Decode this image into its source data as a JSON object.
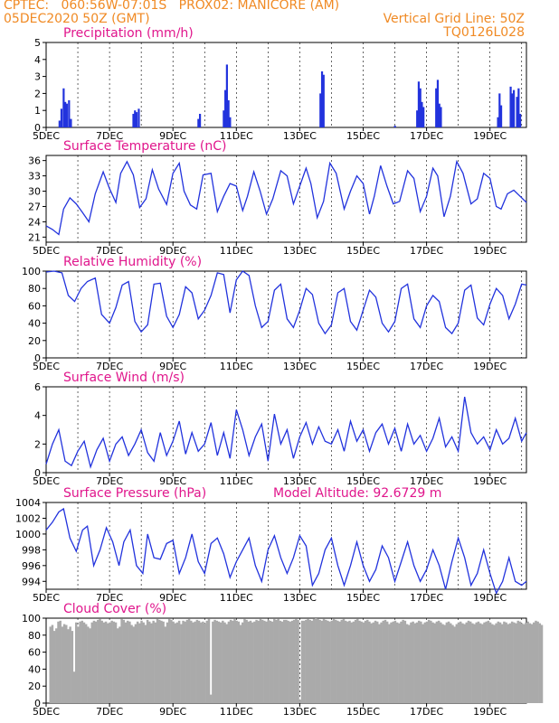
{
  "header": {
    "left_line1": "CPTEC:   060:56W-07:01S   PROX02: MANICORE (AM)",
    "left_line2": "05DEC2020 50Z (GMT)",
    "right_line2": "Vertical Grid Line: 50Z",
    "right_line3": "TQ0126L028"
  },
  "colors": {
    "header": "#f08a24",
    "title": "#e0168c",
    "line": "#2233dd",
    "bar": "#2233dd",
    "cloud": "#aaaaaa",
    "grid": "#000000"
  },
  "x_tick_labels": [
    "5DEC",
    "7DEC",
    "9DEC",
    "11DEC",
    "13DEC",
    "15DEC",
    "17DEC",
    "19DEC"
  ],
  "chart_data": [
    {
      "type": "bar",
      "title": "Precipitation (mm/h)",
      "ylim": [
        0,
        5
      ],
      "yticks": [
        0,
        1,
        2,
        3,
        4,
        5
      ],
      "x_unit": "days since 05DEC",
      "x": [
        0.42,
        0.48,
        0.55,
        0.6,
        0.65,
        0.72,
        0.78,
        2.75,
        2.8,
        2.85,
        2.92,
        4.8,
        4.85,
        5.6,
        5.65,
        5.7,
        5.75,
        5.8,
        8.65,
        8.7,
        8.75,
        11.0,
        11.7,
        11.75,
        11.8,
        11.85,
        11.9,
        12.3,
        12.35,
        12.4,
        12.45,
        14.25,
        14.3,
        14.35,
        14.65,
        14.7,
        14.75,
        14.85,
        14.9,
        14.95
      ],
      "values": [
        0.4,
        1.1,
        2.3,
        1.5,
        1.4,
        1.6,
        0.5,
        0.8,
        1.0,
        0.9,
        1.1,
        0.5,
        0.8,
        1.0,
        2.2,
        3.7,
        1.6,
        0.6,
        2.0,
        3.3,
        3.1,
        0.1,
        1.0,
        2.7,
        2.3,
        1.5,
        1.2,
        2.3,
        2.8,
        1.4,
        1.2,
        0.6,
        2.0,
        1.3,
        2.4,
        2.0,
        2.2,
        1.8,
        2.3,
        0.8
      ]
    },
    {
      "type": "line",
      "title": "Surface Temperature (nC)",
      "ylim": [
        20,
        37
      ],
      "yticks": [
        21,
        24,
        27,
        30,
        33,
        36
      ],
      "x_unit": "days since 05DEC",
      "x": [
        0,
        0.2,
        0.4,
        0.55,
        0.75,
        0.95,
        1.15,
        1.35,
        1.55,
        1.8,
        2.0,
        2.2,
        2.35,
        2.55,
        2.75,
        2.95,
        3.15,
        3.35,
        3.55,
        3.8,
        4.0,
        4.2,
        4.35,
        4.55,
        4.75,
        4.95,
        5.2,
        5.4,
        5.6,
        5.8,
        6.0,
        6.2,
        6.35,
        6.55,
        6.75,
        6.95,
        7.15,
        7.4,
        7.6,
        7.8,
        8.0,
        8.2,
        8.35,
        8.55,
        8.75,
        8.95,
        9.15,
        9.4,
        9.6,
        9.8,
        10.0,
        10.2,
        10.35,
        10.55,
        10.75,
        10.95,
        11.15,
        11.4,
        11.6,
        11.8,
        12.0,
        12.2,
        12.35,
        12.55,
        12.75,
        12.95,
        13.15,
        13.4,
        13.6,
        13.8,
        14.0,
        14.2,
        14.35,
        14.55,
        14.75,
        14.95,
        15.15
      ],
      "values": [
        23.2,
        22.5,
        21.5,
        26.5,
        28.7,
        27.5,
        25.8,
        24.0,
        29.5,
        33.8,
        30.5,
        27.8,
        33.5,
        35.8,
        33.2,
        26.8,
        28.5,
        34.2,
        30.4,
        27.4,
        33.5,
        35.5,
        30.0,
        27.3,
        26.5,
        33.2,
        33.5,
        26.0,
        29.0,
        31.5,
        31.0,
        26.2,
        29.0,
        33.8,
        30.0,
        25.5,
        28.5,
        34.0,
        33.0,
        27.5,
        31.0,
        34.5,
        31.5,
        24.8,
        28.0,
        35.5,
        33.5,
        26.5,
        30.0,
        33.0,
        31.5,
        25.5,
        29.0,
        35.0,
        31.0,
        27.5,
        28.0,
        34.0,
        32.5,
        26.0,
        29.0,
        34.5,
        33.0,
        25.0,
        29.0,
        35.8,
        33.5,
        27.5,
        28.5,
        33.5,
        32.5,
        27.0,
        26.5,
        29.5,
        30.2,
        29.0,
        27.8
      ]
    },
    {
      "type": "line",
      "title": "Relative Humidity (%)",
      "ylim": [
        0,
        100
      ],
      "yticks": [
        0,
        20,
        40,
        60,
        80,
        100
      ],
      "x_unit": "days since 05DEC",
      "x": [
        0,
        0.25,
        0.5,
        0.7,
        0.9,
        1.1,
        1.3,
        1.55,
        1.75,
        2.0,
        2.2,
        2.4,
        2.6,
        2.8,
        3.0,
        3.2,
        3.4,
        3.6,
        3.8,
        4.0,
        4.2,
        4.4,
        4.6,
        4.8,
        5.0,
        5.2,
        5.4,
        5.6,
        5.8,
        6.0,
        6.2,
        6.4,
        6.6,
        6.8,
        7.0,
        7.2,
        7.4,
        7.6,
        7.8,
        8.0,
        8.2,
        8.4,
        8.6,
        8.8,
        9.0,
        9.2,
        9.4,
        9.6,
        9.8,
        10.0,
        10.2,
        10.4,
        10.6,
        10.8,
        11.0,
        11.2,
        11.4,
        11.6,
        11.8,
        12.0,
        12.2,
        12.4,
        12.6,
        12.8,
        13.0,
        13.2,
        13.4,
        13.6,
        13.8,
        14.0,
        14.2,
        14.4,
        14.6,
        14.8,
        15.0,
        15.15
      ],
      "values": [
        99,
        100,
        98,
        72,
        65,
        80,
        88,
        92,
        50,
        40,
        58,
        84,
        88,
        42,
        30,
        38,
        85,
        86,
        48,
        35,
        50,
        82,
        75,
        45,
        55,
        72,
        98,
        96,
        52,
        90,
        100,
        95,
        60,
        35,
        42,
        78,
        85,
        45,
        35,
        55,
        80,
        73,
        40,
        28,
        38,
        75,
        80,
        42,
        32,
        55,
        78,
        70,
        40,
        30,
        42,
        80,
        85,
        45,
        35,
        60,
        72,
        65,
        35,
        28,
        40,
        78,
        84,
        46,
        38,
        62,
        80,
        72,
        45,
        62,
        85,
        84
      ]
    },
    {
      "type": "line",
      "title": "Surface Wind (m/s)",
      "ylim": [
        0,
        6
      ],
      "yticks": [
        0,
        2,
        4,
        6
      ],
      "x_unit": "days since 05DEC",
      "x": [
        0,
        0.2,
        0.4,
        0.6,
        0.8,
        1.0,
        1.2,
        1.4,
        1.6,
        1.8,
        2.0,
        2.2,
        2.4,
        2.6,
        2.8,
        3.0,
        3.2,
        3.4,
        3.6,
        3.8,
        4.0,
        4.2,
        4.4,
        4.6,
        4.8,
        5.0,
        5.2,
        5.4,
        5.6,
        5.8,
        6.0,
        6.2,
        6.4,
        6.6,
        6.8,
        7.0,
        7.2,
        7.4,
        7.6,
        7.8,
        8.0,
        8.2,
        8.4,
        8.6,
        8.8,
        9.0,
        9.2,
        9.4,
        9.6,
        9.8,
        10.0,
        10.2,
        10.4,
        10.6,
        10.8,
        11.0,
        11.2,
        11.4,
        11.6,
        11.8,
        12.0,
        12.2,
        12.4,
        12.6,
        12.8,
        13.0,
        13.2,
        13.4,
        13.6,
        13.8,
        14.0,
        14.2,
        14.4,
        14.6,
        14.8,
        15.0,
        15.15
      ],
      "values": [
        0.6,
        2.0,
        3.0,
        0.8,
        0.5,
        1.5,
        2.2,
        0.4,
        1.6,
        2.4,
        0.8,
        2.0,
        2.5,
        1.2,
        2.0,
        3.0,
        1.4,
        0.8,
        2.8,
        1.2,
        2.2,
        3.6,
        1.3,
        2.8,
        1.5,
        2.0,
        3.5,
        1.2,
        2.8,
        1.0,
        4.4,
        3.0,
        1.2,
        2.5,
        3.4,
        0.8,
        4.1,
        2.0,
        3.0,
        1.0,
        2.5,
        3.5,
        2.0,
        3.2,
        2.2,
        2.0,
        3.0,
        1.5,
        3.6,
        2.2,
        3.0,
        1.5,
        2.8,
        3.4,
        2.0,
        3.1,
        1.5,
        3.4,
        2.0,
        2.6,
        1.5,
        2.4,
        3.8,
        1.8,
        2.5,
        1.5,
        5.3,
        2.8,
        2.0,
        2.5,
        1.6,
        3.0,
        2.0,
        2.4,
        3.8,
        2.2,
        2.8
      ]
    },
    {
      "type": "line",
      "title": "Surface Pressure (hPa)",
      "subtitle": "Model Altitude: 92.6729 m",
      "ylim": [
        993,
        1004
      ],
      "yticks": [
        994,
        996,
        998,
        1000,
        1002,
        1004
      ],
      "x_unit": "days since 05DEC",
      "x": [
        0,
        0.2,
        0.4,
        0.55,
        0.75,
        0.95,
        1.15,
        1.3,
        1.5,
        1.7,
        1.9,
        2.1,
        2.3,
        2.45,
        2.65,
        2.85,
        3.05,
        3.2,
        3.4,
        3.6,
        3.8,
        4.0,
        4.2,
        4.4,
        4.6,
        4.8,
        5.0,
        5.2,
        5.4,
        5.6,
        5.8,
        6.0,
        6.2,
        6.4,
        6.6,
        6.8,
        7.0,
        7.2,
        7.4,
        7.6,
        7.8,
        8.0,
        8.2,
        8.4,
        8.6,
        8.8,
        9.0,
        9.2,
        9.4,
        9.6,
        9.8,
        10.0,
        10.2,
        10.4,
        10.6,
        10.8,
        11.0,
        11.2,
        11.4,
        11.6,
        11.8,
        12.0,
        12.2,
        12.4,
        12.6,
        12.8,
        13.0,
        13.2,
        13.4,
        13.6,
        13.8,
        14.0,
        14.2,
        14.4,
        14.6,
        14.8,
        15.0,
        15.15
      ],
      "values": [
        1000.5,
        1001.5,
        1002.8,
        1003.2,
        999.5,
        997.8,
        1000.5,
        1001.0,
        996.0,
        998.0,
        1000.8,
        999.0,
        996.0,
        999.0,
        1000.5,
        996.0,
        995.0,
        1000.0,
        997.0,
        996.8,
        998.8,
        999.2,
        995.0,
        997.0,
        1000.0,
        996.5,
        995.0,
        998.8,
        999.5,
        997.5,
        994.5,
        996.5,
        998.0,
        999.5,
        996.0,
        994.0,
        998.0,
        999.8,
        997.0,
        995.0,
        997.0,
        999.8,
        998.5,
        993.5,
        995.0,
        998.0,
        999.5,
        996.0,
        993.5,
        996.0,
        999.0,
        996.0,
        994.0,
        995.5,
        998.5,
        997.0,
        994.0,
        996.5,
        999.0,
        996.0,
        994.0,
        995.5,
        998.0,
        996.0,
        993.0,
        996.5,
        999.5,
        997.0,
        993.5,
        995.0,
        998.0,
        995.0,
        992.5,
        994.0,
        997.0,
        994.0,
        993.5,
        994.0
      ]
    },
    {
      "type": "bar",
      "title": "Cloud Cover (%)",
      "ylim": [
        0,
        100
      ],
      "yticks": [
        0,
        20,
        40,
        60,
        80,
        100
      ],
      "x_unit": "days since 05DEC",
      "x_start": 0.1,
      "x_step": 0.0625,
      "values": [
        90,
        92,
        85,
        88,
        96,
        97,
        90,
        93,
        92,
        87,
        90,
        85,
        37,
        95,
        90,
        96,
        97,
        95,
        93,
        90,
        88,
        95,
        97,
        96,
        98,
        99,
        97,
        95,
        96,
        94,
        95,
        97,
        96,
        95,
        88,
        90,
        99,
        98,
        95,
        97,
        96,
        92,
        90,
        93,
        96,
        94,
        97,
        95,
        92,
        98,
        96,
        94,
        97,
        95,
        99,
        98,
        97,
        96,
        90,
        95,
        99,
        98,
        96,
        94,
        95,
        97,
        93,
        97,
        96,
        98,
        99,
        97,
        95,
        96,
        98,
        97,
        95,
        96,
        94,
        97,
        99,
        10,
        96,
        98,
        97,
        96,
        95,
        97,
        95,
        93,
        96,
        98,
        97,
        99,
        97,
        96,
        92,
        95,
        99,
        98,
        96,
        97,
        95,
        96,
        98,
        97,
        99,
        98,
        97,
        96,
        98,
        97,
        96,
        99,
        98,
        99,
        97,
        96,
        98,
        98,
        97,
        96,
        97,
        98,
        99,
        98,
        4,
        97,
        97,
        98,
        99,
        98,
        97,
        99,
        100,
        99,
        98,
        97,
        99,
        98,
        97,
        96,
        97,
        99,
        98,
        97,
        96,
        98,
        99,
        97,
        96,
        97,
        95,
        96,
        98,
        99,
        97,
        96,
        95,
        97,
        98,
        96,
        94,
        95,
        97,
        96,
        93,
        95,
        97,
        98,
        96,
        93,
        95,
        96,
        97,
        95,
        94,
        96,
        98,
        97,
        93,
        92,
        95,
        96,
        94,
        95,
        97,
        96,
        93,
        95,
        96,
        98,
        97,
        95,
        94,
        96,
        97,
        95,
        93,
        92,
        95,
        96,
        94,
        92,
        90,
        93,
        95,
        96,
        94,
        93,
        95,
        97,
        96,
        94,
        93,
        95,
        96,
        94,
        93,
        95,
        96,
        97,
        95,
        93,
        92,
        94,
        96,
        95,
        93,
        96,
        95,
        93,
        94,
        96,
        95,
        94,
        97,
        96,
        94,
        93,
        95,
        96,
        94,
        93,
        95,
        97,
        96,
        94,
        92
      ]
    }
  ]
}
